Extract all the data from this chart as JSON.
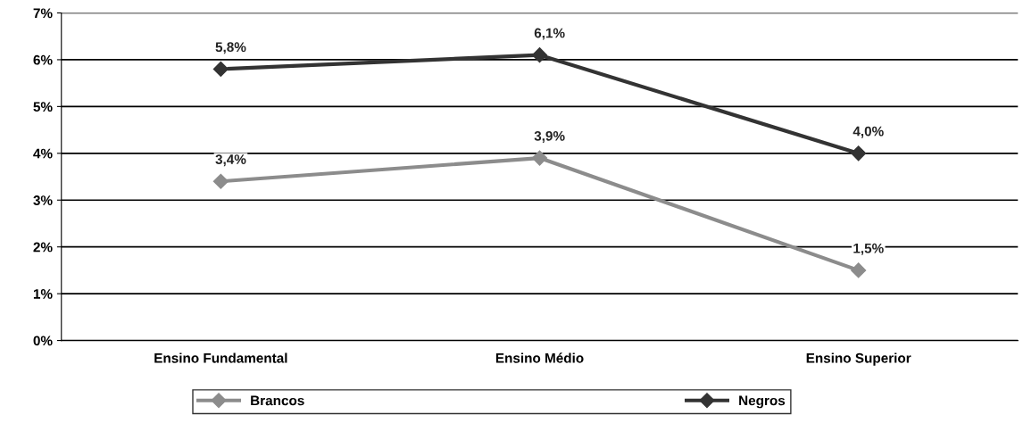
{
  "chart_data": {
    "type": "line",
    "categories": [
      "Ensino Fundamental",
      "Ensino Médio",
      "Ensino Superior"
    ],
    "series": [
      {
        "name": "Brancos",
        "color": "#8c8c8c",
        "values": [
          3.4,
          3.9,
          1.5
        ],
        "value_labels": [
          "3,4%",
          "3,9%",
          "1,5%"
        ]
      },
      {
        "name": "Negros",
        "color": "#333333",
        "values": [
          5.8,
          6.1,
          4.0
        ],
        "value_labels": [
          "5,8%",
          "6,1%",
          "4,0%"
        ]
      }
    ],
    "ylim": [
      0,
      7
    ],
    "yticks": [
      {
        "value": 0,
        "label": "0%"
      },
      {
        "value": 1,
        "label": "1%"
      },
      {
        "value": 2,
        "label": "2%"
      },
      {
        "value": 3,
        "label": "3%"
      },
      {
        "value": 4,
        "label": "4%"
      },
      {
        "value": 5,
        "label": "5%"
      },
      {
        "value": 6,
        "label": "6%"
      },
      {
        "value": 7,
        "label": "7%"
      }
    ],
    "grid": "y",
    "legend": "bottom",
    "marker": "diamond",
    "line_style": "solid"
  }
}
